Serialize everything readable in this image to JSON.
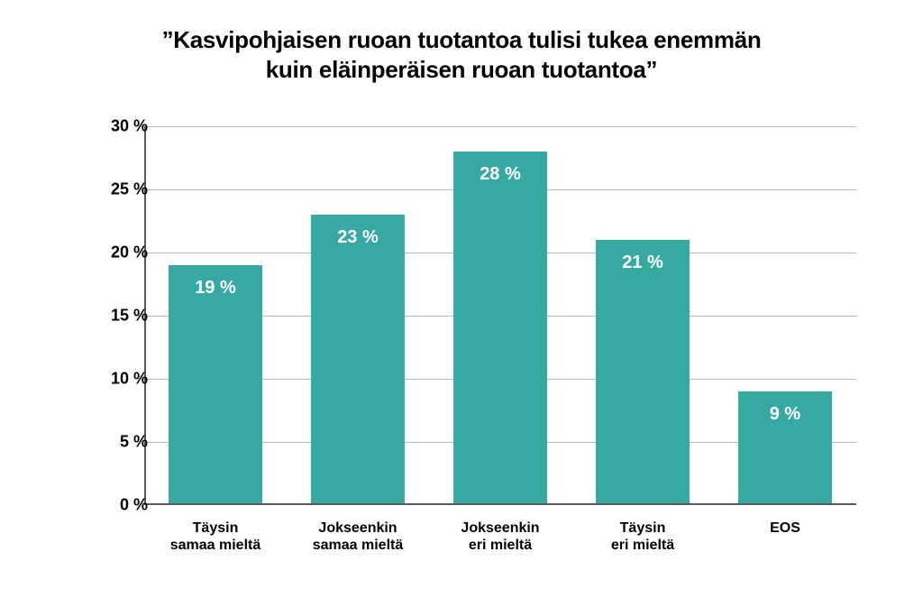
{
  "chart": {
    "type": "bar",
    "title": "”Kasvipohjaisen ruoan tuotantoa tulisi tukea enemmän\nkuin eläinperäisen ruoan tuotantoa”",
    "title_fontsize": 26,
    "title_color": "#000000",
    "background_color": "#ffffff",
    "grid_color": "#b7b7b7",
    "axis_color": "#595959",
    "y": {
      "min": 0,
      "max": 30,
      "ticks": [
        0,
        5,
        10,
        15,
        20,
        25,
        30
      ],
      "tick_labels": [
        "0 %",
        "5 %",
        "10 %",
        "15 %",
        "20 %",
        "25 %",
        "30 %"
      ],
      "tick_fontsize": 18,
      "tick_fontweight": 700,
      "tick_color": "#000000"
    },
    "x": {
      "labels": [
        "Täysin\nsamaa mieltä",
        "Jokseenkin\nsamaa mieltä",
        "Jokseenkin\neri mieltä",
        "Täysin\neri mieltä",
        "EOS"
      ],
      "label_fontsize": 16,
      "label_fontweight": 800,
      "label_color": "#000000"
    },
    "series": {
      "values": [
        19,
        23,
        28,
        21,
        9
      ],
      "value_labels": [
        "19 %",
        "23 %",
        "28 %",
        "21 %",
        "9 %"
      ],
      "value_label_fontsize": 20,
      "value_label_color": "#ffffff",
      "bar_color": "#37a9a3",
      "bar_width_fraction": 0.66
    }
  }
}
